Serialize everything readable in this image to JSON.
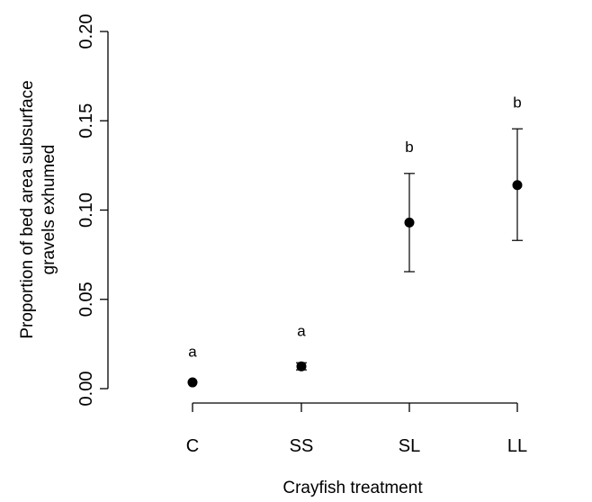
{
  "chart_data": {
    "type": "scatter",
    "xlabel": "Crayfish treatment",
    "ylabel_lines": [
      "Proportion of bed area subsurface",
      "gravels exhumed"
    ],
    "categories": [
      "C",
      "SS",
      "SL",
      "LL"
    ],
    "ylim": [
      0,
      0.2
    ],
    "y_ticks": [
      "0.00",
      "0.05",
      "0.10",
      "0.15",
      "0.20"
    ],
    "y_tick_values": [
      0,
      0.05,
      0.1,
      0.15,
      0.2
    ],
    "grid": false,
    "series": [
      {
        "values": [
          0.0035,
          0.0125,
          0.093,
          0.114
        ],
        "err_low": [
          0.0035,
          0.0105,
          0.0655,
          0.083
        ],
        "err_high": [
          0.0035,
          0.0145,
          0.1205,
          0.1455
        ],
        "labels": [
          "a",
          "a",
          "b",
          "b"
        ],
        "label_y": [
          0.021,
          0.0325,
          0.1355,
          0.1605
        ]
      }
    ]
  }
}
